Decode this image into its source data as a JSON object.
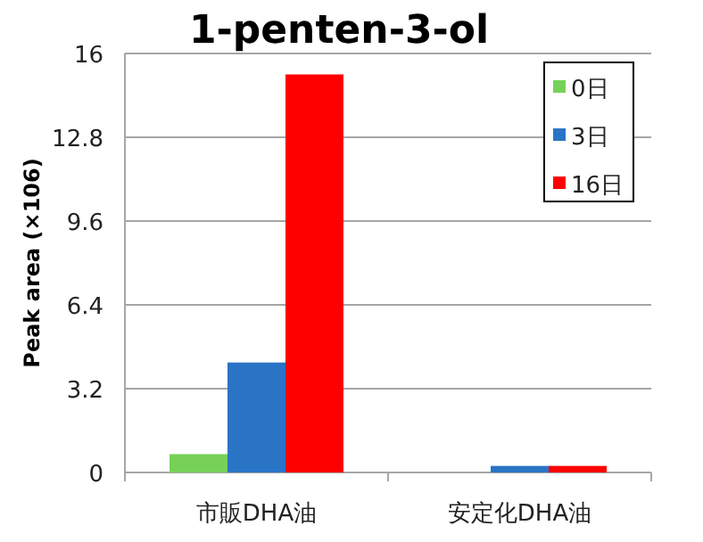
{
  "chart_data": {
    "type": "bar",
    "title": "1-penten-3-ol",
    "ylabel": "Peak area (×106)",
    "categories": [
      "市販DHA油",
      "安定化DHA油"
    ],
    "series": [
      {
        "name": "0日",
        "color": "#77d158",
        "values": [
          0.7,
          0
        ]
      },
      {
        "name": "3日",
        "color": "#2a74c6",
        "values": [
          4.2,
          0.25
        ]
      },
      {
        "name": "16日",
        "color": "#ff0000",
        "values": [
          15.2,
          0.25
        ]
      }
    ],
    "ylim": [
      0,
      16
    ],
    "yticks": [
      0,
      3.2,
      6.4,
      9.6,
      12.8,
      16
    ],
    "grid": "y",
    "legend": "top right"
  }
}
